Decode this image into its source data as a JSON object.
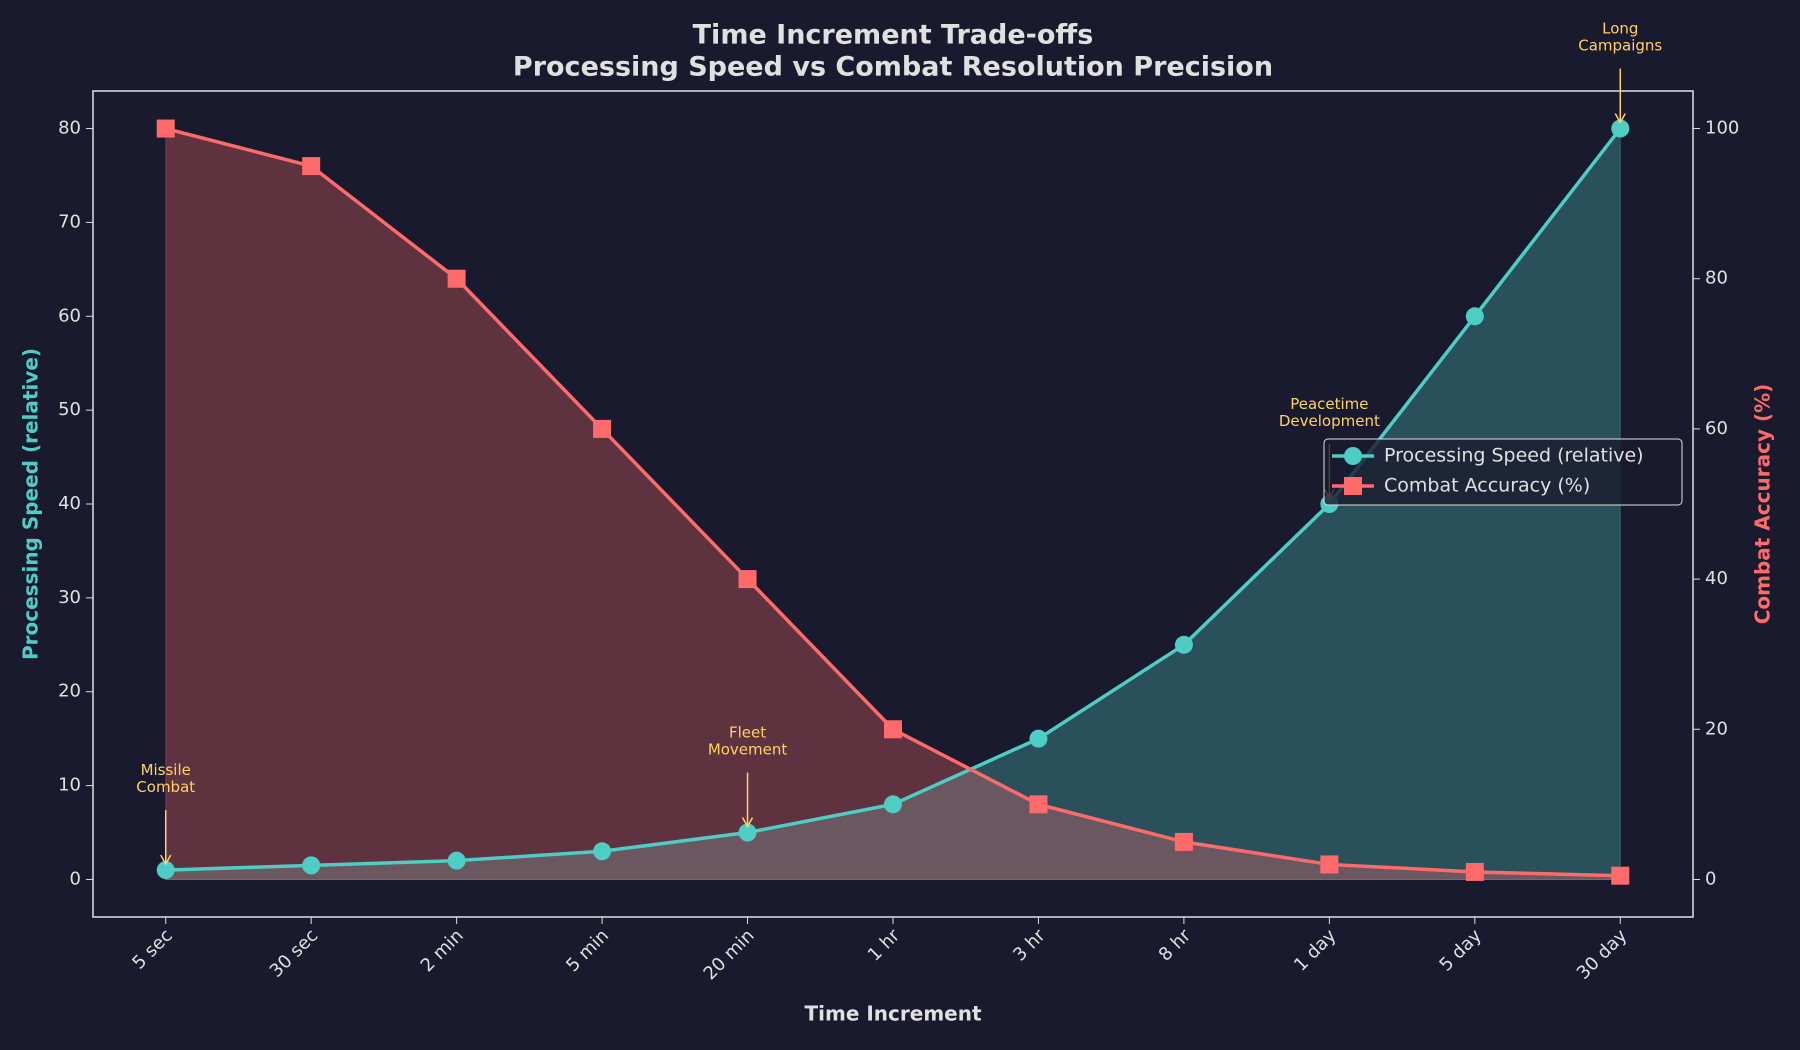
{
  "chart_data": {
    "type": "line",
    "title": "Time Increment Trade-offs",
    "subtitle": "Processing Speed vs Combat Resolution Precision",
    "x_label": "Time Increment",
    "y_label": "Processing Speed (relative)",
    "y2_label": "Combat Accuracy (%)",
    "categories": [
      "5 sec",
      "30 sec",
      "2 min",
      "5 min",
      "20 min",
      "1 hr",
      "3 hr",
      "8 hr",
      "1 day",
      "5 day",
      "30 day"
    ],
    "series": [
      {
        "name": "Processing Speed (relative)",
        "color": "#4ecdc4",
        "marker": "circle",
        "values": [
          1,
          1.5,
          2,
          3,
          5,
          8,
          15,
          25,
          40,
          60,
          80
        ]
      },
      {
        "name": "Combat Accuracy (%)",
        "color": "#ff6b6b",
        "marker": "square",
        "axis": "y2",
        "values": [
          100,
          95,
          80,
          60,
          40,
          20,
          10,
          5,
          2,
          1,
          0.5
        ]
      }
    ],
    "ylim": [
      -4,
      84
    ],
    "yticks": [
      0,
      10,
      20,
      30,
      40,
      50,
      60,
      70,
      80
    ],
    "y2lim": [
      -5,
      105
    ],
    "y2ticks": [
      0,
      20,
      40,
      60,
      80,
      100
    ],
    "legend": "center right",
    "annotations": [
      {
        "text": "Missile\nCombat",
        "category": "5 sec"
      },
      {
        "text": "Fleet\nMovement",
        "category": "20 min"
      },
      {
        "text": "Peacetime\nDevelopment",
        "category": "1 day"
      },
      {
        "text": "Long\nCampaigns",
        "category": "30 day"
      }
    ]
  }
}
